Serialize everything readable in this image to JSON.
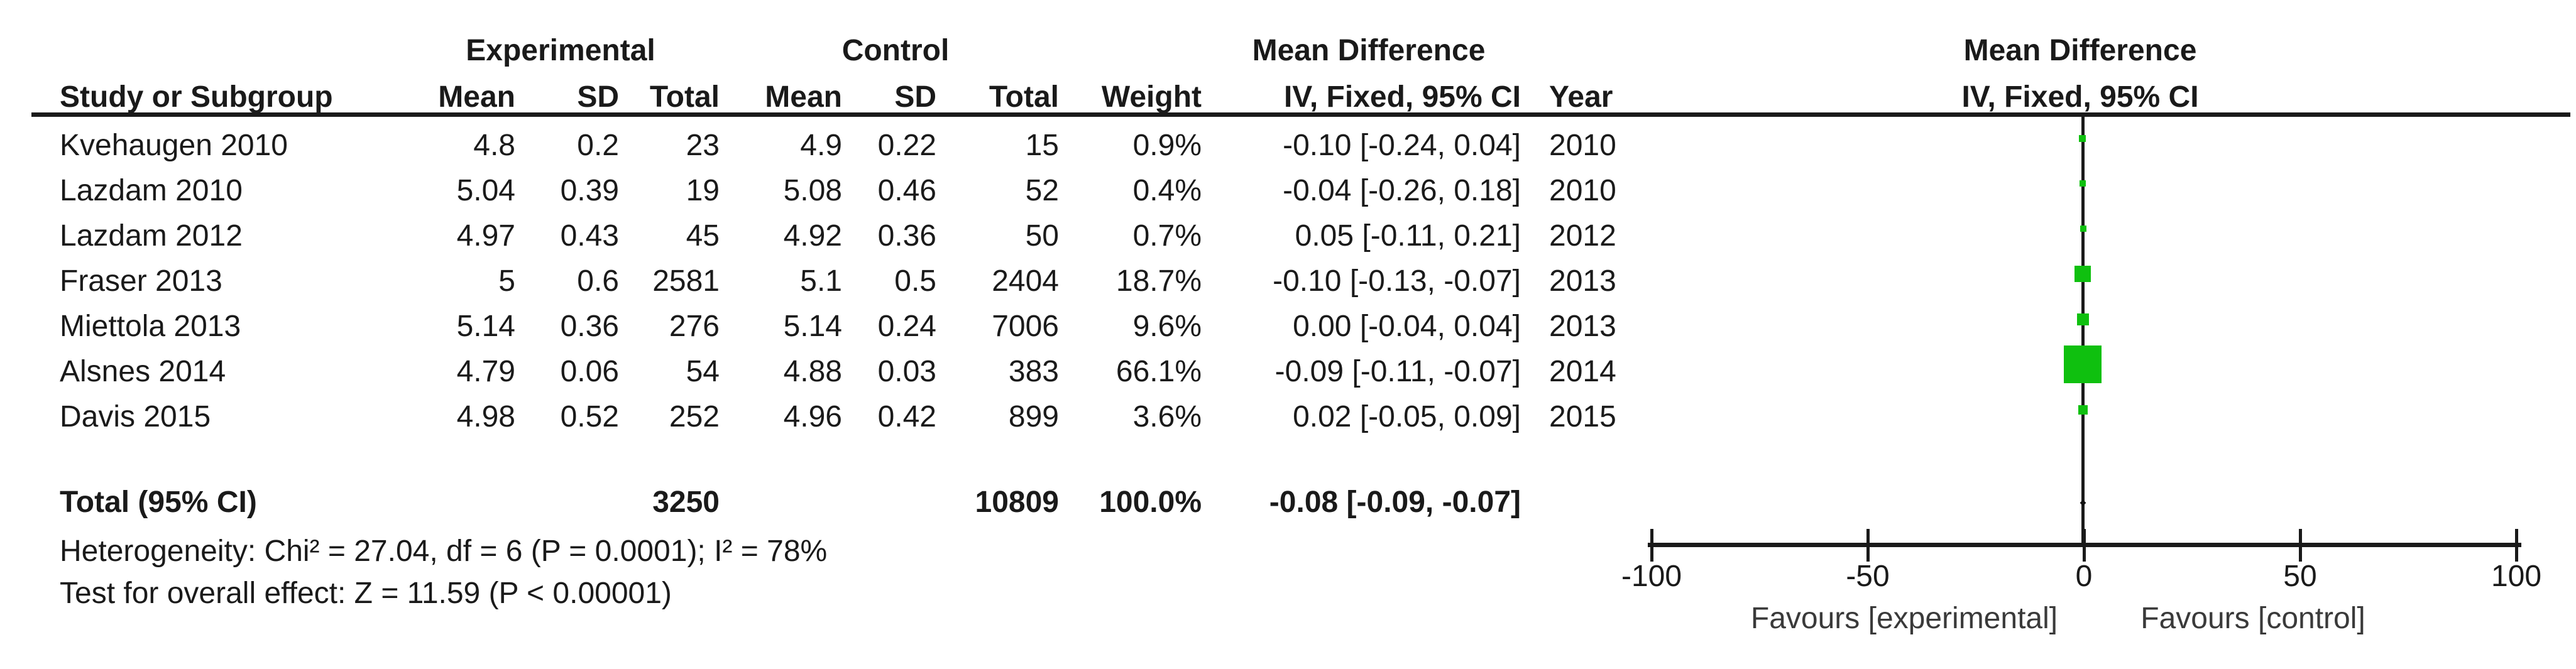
{
  "table": {
    "group_headers": {
      "experimental": "Experimental",
      "control": "Control",
      "mean_difference": "Mean Difference"
    },
    "columns": {
      "study": "Study or Subgroup",
      "mean": "Mean",
      "sd": "SD",
      "total": "Total",
      "weight": "Weight",
      "ci": "IV, Fixed, 95% CI",
      "year": "Year"
    },
    "rows": [
      {
        "study": "Kvehaugen 2010",
        "mean1": "4.8",
        "sd1": "0.2",
        "total1": "23",
        "mean2": "4.9",
        "sd2": "0.22",
        "total2": "15",
        "weight": "0.9%",
        "ci": "-0.10 [-0.24, 0.04]",
        "year": "2010"
      },
      {
        "study": "Lazdam 2010",
        "mean1": "5.04",
        "sd1": "0.39",
        "total1": "19",
        "mean2": "5.08",
        "sd2": "0.46",
        "total2": "52",
        "weight": "0.4%",
        "ci": "-0.04 [-0.26, 0.18]",
        "year": "2010"
      },
      {
        "study": "Lazdam 2012",
        "mean1": "4.97",
        "sd1": "0.43",
        "total1": "45",
        "mean2": "4.92",
        "sd2": "0.36",
        "total2": "50",
        "weight": "0.7%",
        "ci": "0.05 [-0.11, 0.21]",
        "year": "2012"
      },
      {
        "study": "Fraser 2013",
        "mean1": "5",
        "sd1": "0.6",
        "total1": "2581",
        "mean2": "5.1",
        "sd2": "0.5",
        "total2": "2404",
        "weight": "18.7%",
        "ci": "-0.10 [-0.13, -0.07]",
        "year": "2013"
      },
      {
        "study": "Miettola 2013",
        "mean1": "5.14",
        "sd1": "0.36",
        "total1": "276",
        "mean2": "5.14",
        "sd2": "0.24",
        "total2": "7006",
        "weight": "9.6%",
        "ci": "0.00 [-0.04, 0.04]",
        "year": "2013"
      },
      {
        "study": "Alsnes 2014",
        "mean1": "4.79",
        "sd1": "0.06",
        "total1": "54",
        "mean2": "4.88",
        "sd2": "0.03",
        "total2": "383",
        "weight": "66.1%",
        "ci": "-0.09 [-0.11, -0.07]",
        "year": "2014"
      },
      {
        "study": "Davis 2015",
        "mean1": "4.98",
        "sd1": "0.52",
        "total1": "252",
        "mean2": "4.96",
        "sd2": "0.42",
        "total2": "899",
        "weight": "3.6%",
        "ci": "0.02 [-0.05, 0.09]",
        "year": "2015"
      }
    ],
    "total_row": {
      "label": "Total (95% CI)",
      "total1": "3250",
      "total2": "10809",
      "weight": "100.0%",
      "ci": "-0.08 [-0.09, -0.07]"
    },
    "heterogeneity": "Heterogeneity: Chi² = 27.04, df = 6 (P = 0.0001); I² = 78%",
    "overall_effect": "Test for overall effect: Z = 11.59 (P < 0.00001)"
  },
  "plot": {
    "header_line1": "Mean Difference",
    "header_line2": "IV, Fixed, 95% CI",
    "tick_labels": [
      "-100",
      "-50",
      "0",
      "50",
      "100"
    ],
    "favours_left": "Favours [experimental]",
    "favours_right": "Favours [control]",
    "marker_color": "#0fc00f"
  },
  "chart_data": {
    "type": "forest",
    "effect_measure": "Mean Difference (IV, Fixed, 95% CI)",
    "xlim": [
      -100,
      100
    ],
    "ticks": [
      -100,
      -50,
      0,
      50,
      100
    ],
    "zero_line": 0,
    "studies": [
      {
        "name": "Kvehaugen 2010",
        "year": 2010,
        "md": -0.1,
        "ci": [
          -0.24,
          0.04
        ],
        "weight_pct": 0.9,
        "marker_size_px": 11
      },
      {
        "name": "Lazdam 2010",
        "year": 2010,
        "md": -0.04,
        "ci": [
          -0.26,
          0.18
        ],
        "weight_pct": 0.4,
        "marker_size_px": 10
      },
      {
        "name": "Lazdam 2012",
        "year": 2012,
        "md": 0.05,
        "ci": [
          -0.11,
          0.21
        ],
        "weight_pct": 0.7,
        "marker_size_px": 10
      },
      {
        "name": "Fraser 2013",
        "year": 2013,
        "md": -0.1,
        "ci": [
          -0.13,
          -0.07
        ],
        "weight_pct": 18.7,
        "marker_size_px": 26
      },
      {
        "name": "Miettola 2013",
        "year": 2013,
        "md": 0.0,
        "ci": [
          -0.04,
          0.04
        ],
        "weight_pct": 9.6,
        "marker_size_px": 19
      },
      {
        "name": "Alsnes 2014",
        "year": 2014,
        "md": -0.09,
        "ci": [
          -0.11,
          -0.07
        ],
        "weight_pct": 66.1,
        "marker_size_px": 60
      },
      {
        "name": "Davis 2015",
        "year": 2015,
        "md": 0.02,
        "ci": [
          -0.05,
          0.09
        ],
        "weight_pct": 3.6,
        "marker_size_px": 15
      }
    ],
    "total": {
      "label": "Total (95% CI)",
      "md": -0.08,
      "ci": [
        -0.09,
        -0.07
      ],
      "weight_pct": 100.0
    }
  }
}
